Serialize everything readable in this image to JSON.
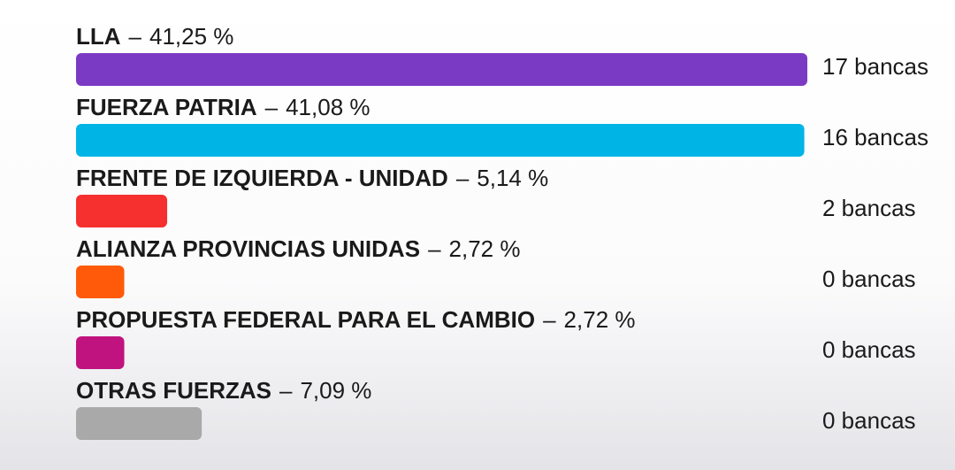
{
  "chart_data": {
    "type": "hbar",
    "categories": [
      "LLA",
      "FUERZA PATRIA",
      "FRENTE DE IZQUIERDA - UNIDAD",
      "ALIANZA PROVINCIAS UNIDAS",
      "PROPUESTA FEDERAL PARA EL CAMBIO",
      "OTRAS FUERZAS"
    ],
    "separator": "–",
    "values": [
      41.25,
      41.08,
      5.14,
      2.72,
      2.72,
      7.09
    ],
    "value_labels": [
      "41,25 %",
      "41,08 %",
      "5,14 %",
      "2,72 %",
      "2,72 %",
      "7,09 %"
    ],
    "seat_labels": [
      "17 bancas",
      "16 bancas",
      "2 bancas",
      "0 bancas",
      "0 bancas",
      "0 bancas"
    ],
    "colors": [
      "#7b3ac4",
      "#00b5e6",
      "#f5302e",
      "#ff5a0a",
      "#c0137f",
      "#a9a9a9"
    ]
  }
}
